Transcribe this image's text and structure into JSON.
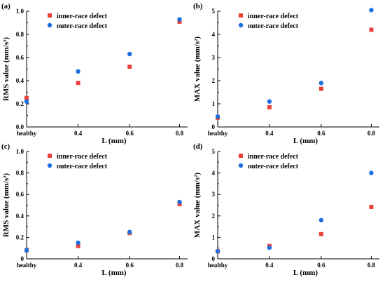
{
  "colors": {
    "inner": "#e8413a",
    "outer": "#1d6fe0",
    "axis": "#000000"
  },
  "chart_data": [
    {
      "type": "scatter",
      "panel_label": "(a)",
      "x_tick_labels": [
        "healthy",
        "0.4",
        "0.6",
        "0.8"
      ],
      "xlabel": "L (mm)",
      "ylabel": "RMS value (mm/s²)",
      "ylim": [
        0.0,
        1.0
      ],
      "y_ticks": [
        0.0,
        0.2,
        0.4,
        0.6,
        0.8,
        1.0
      ],
      "y_tick_labels": [
        "0.0",
        "0.2",
        "0.4",
        "0.6",
        "0.8",
        "1.0"
      ],
      "legend_position": "top-left",
      "series": [
        {
          "name": "inner-race defect",
          "marker": "square",
          "values": [
            0.25,
            0.38,
            0.52,
            0.91
          ]
        },
        {
          "name": "outer-race defect",
          "marker": "circle",
          "values": [
            0.22,
            0.48,
            0.63,
            0.93
          ]
        }
      ]
    },
    {
      "type": "scatter",
      "panel_label": "(b)",
      "x_tick_labels": [
        "healthy",
        "0.4",
        "0.6",
        "0.8"
      ],
      "xlabel": "L (mm)",
      "ylabel": "MAX value (mm/s²)",
      "ylim": [
        0,
        5
      ],
      "y_ticks": [
        0,
        1,
        2,
        3,
        4,
        5
      ],
      "y_tick_labels": [
        "0",
        "1",
        "2",
        "3",
        "4",
        "5"
      ],
      "legend_position": "top-left",
      "series": [
        {
          "name": "inner-race defect",
          "marker": "square",
          "values": [
            0.4,
            0.85,
            1.65,
            4.2
          ]
        },
        {
          "name": "outer-race defect",
          "marker": "circle",
          "values": [
            0.45,
            1.1,
            1.9,
            5.05
          ]
        }
      ]
    },
    {
      "type": "scatter",
      "panel_label": "(c)",
      "x_tick_labels": [
        "healthy",
        "0.4",
        "0.6",
        "0.8"
      ],
      "xlabel": "L (mm)",
      "ylabel": "RMS value (mm/s²)",
      "ylim": [
        0.0,
        1.0
      ],
      "y_ticks": [
        0.0,
        0.2,
        0.4,
        0.6,
        0.8,
        1.0
      ],
      "y_tick_labels": [
        "0",
        "0.2",
        "0.4",
        "0.6",
        "0.8",
        "1.0"
      ],
      "legend_position": "top-left",
      "series": [
        {
          "name": "inner-race defect",
          "marker": "square",
          "values": [
            0.08,
            0.12,
            0.24,
            0.51
          ]
        },
        {
          "name": "outer-race defect",
          "marker": "circle",
          "values": [
            0.08,
            0.15,
            0.25,
            0.53
          ]
        }
      ]
    },
    {
      "type": "scatter",
      "panel_label": "(d)",
      "x_tick_labels": [
        "healthy",
        "0.4",
        "0.6",
        "0.8"
      ],
      "xlabel": "L (mm)",
      "ylabel": "MAX value (mm/s²)",
      "ylim": [
        0,
        5
      ],
      "y_ticks": [
        0,
        1,
        2,
        3,
        4,
        5
      ],
      "y_tick_labels": [
        "0",
        "1",
        "2",
        "3",
        "4",
        "5"
      ],
      "legend_position": "top-left",
      "series": [
        {
          "name": "inner-race defect",
          "marker": "square",
          "values": [
            0.35,
            0.6,
            1.15,
            2.42
          ]
        },
        {
          "name": "outer-race defect",
          "marker": "circle",
          "values": [
            0.35,
            0.52,
            1.8,
            4.0
          ]
        }
      ]
    }
  ]
}
